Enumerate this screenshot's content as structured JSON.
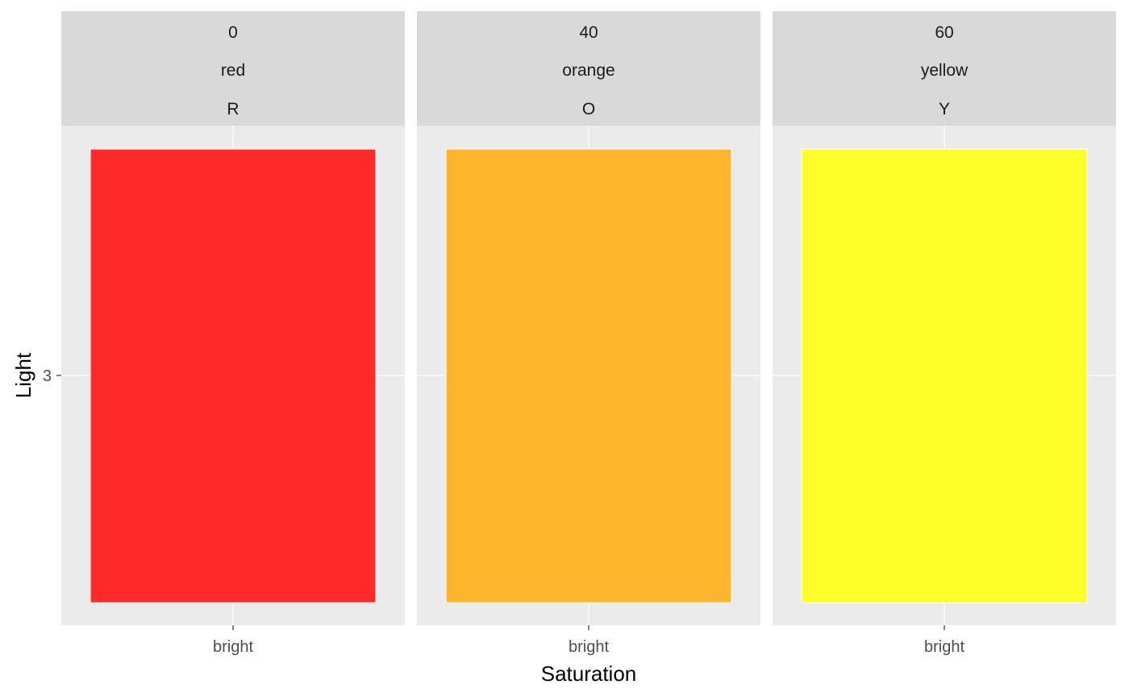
{
  "chart_data": {
    "type": "bar",
    "facet_by": [
      "hue",
      "name",
      "code"
    ],
    "panels": [
      {
        "hue": "0",
        "name": "red",
        "code": "R",
        "categories": [
          "bright"
        ],
        "values": [
          3
        ],
        "color": "#FF2A2A"
      },
      {
        "hue": "40",
        "name": "orange",
        "code": "O",
        "categories": [
          "bright"
        ],
        "values": [
          3
        ],
        "color": "#FDB62C"
      },
      {
        "hue": "60",
        "name": "yellow",
        "code": "Y",
        "categories": [
          "bright"
        ],
        "values": [
          3
        ],
        "color": "#FDFD2A"
      }
    ],
    "xlabel": "Saturation",
    "ylabel": "Light",
    "y_ticks": [
      "3"
    ],
    "grid": true,
    "legend": "none",
    "panel_background": "#EBEBEB",
    "strip_background": "#D9D9D9"
  }
}
